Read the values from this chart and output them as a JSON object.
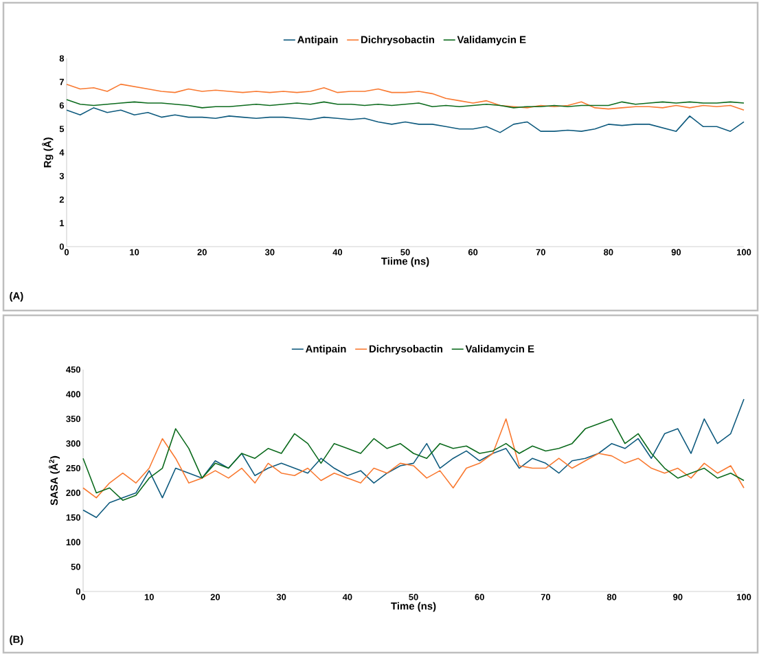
{
  "chart_data": [
    {
      "type": "line",
      "xlabel": "Tiime (ns)",
      "ylabel": "Rg (Å)",
      "legend": "top",
      "xlim": [
        0,
        100
      ],
      "ylim": [
        0,
        8
      ],
      "xticks": [
        0,
        10,
        20,
        30,
        40,
        50,
        60,
        70,
        80,
        90,
        100
      ],
      "yticks": [
        0,
        1,
        2,
        3,
        4,
        5,
        6,
        7,
        8
      ],
      "annotations": [
        "(A)"
      ],
      "x": [
        0,
        2,
        4,
        6,
        8,
        10,
        12,
        14,
        16,
        18,
        20,
        22,
        24,
        26,
        28,
        30,
        32,
        34,
        36,
        38,
        40,
        42,
        44,
        46,
        48,
        50,
        52,
        54,
        56,
        58,
        60,
        62,
        64,
        66,
        68,
        70,
        72,
        74,
        76,
        78,
        80,
        82,
        84,
        86,
        88,
        90,
        92,
        94,
        96,
        98,
        100
      ],
      "series": [
        {
          "name": "Antipain",
          "color": "#0e5a7e",
          "values": [
            5.8,
            5.6,
            5.9,
            5.7,
            5.8,
            5.6,
            5.7,
            5.5,
            5.6,
            5.5,
            5.5,
            5.45,
            5.55,
            5.5,
            5.45,
            5.5,
            5.5,
            5.45,
            5.4,
            5.5,
            5.45,
            5.4,
            5.45,
            5.3,
            5.2,
            5.3,
            5.2,
            5.2,
            5.1,
            5.0,
            5.0,
            5.1,
            4.85,
            5.2,
            5.3,
            4.9,
            4.9,
            4.95,
            4.9,
            5.0,
            5.2,
            5.15,
            5.2,
            5.2,
            5.05,
            4.9,
            5.55,
            5.1,
            5.1,
            4.9,
            5.3
          ]
        },
        {
          "name": "Dichrysobactin",
          "color": "#f97930",
          "values": [
            6.9,
            6.7,
            6.75,
            6.6,
            6.9,
            6.8,
            6.7,
            6.6,
            6.55,
            6.7,
            6.6,
            6.65,
            6.6,
            6.55,
            6.6,
            6.55,
            6.6,
            6.55,
            6.6,
            6.75,
            6.55,
            6.6,
            6.6,
            6.7,
            6.55,
            6.55,
            6.6,
            6.5,
            6.3,
            6.2,
            6.1,
            6.2,
            6.0,
            5.95,
            5.9,
            6.0,
            5.95,
            6.0,
            6.15,
            5.9,
            5.85,
            5.9,
            5.95,
            5.95,
            5.9,
            6.0,
            5.9,
            6.0,
            5.95,
            6.0,
            5.8
          ]
        },
        {
          "name": "Validamycin E",
          "color": "#0b6a1c",
          "values": [
            6.25,
            6.05,
            6.0,
            6.05,
            6.1,
            6.15,
            6.1,
            6.1,
            6.05,
            6.0,
            5.9,
            5.95,
            5.95,
            6.0,
            6.05,
            6.0,
            6.05,
            6.1,
            6.05,
            6.15,
            6.05,
            6.05,
            6.0,
            6.05,
            6.0,
            6.05,
            6.1,
            5.95,
            6.0,
            5.95,
            6.0,
            6.05,
            6.0,
            5.9,
            5.95,
            5.95,
            6.0,
            5.95,
            6.0,
            6.0,
            6.0,
            6.15,
            6.05,
            6.1,
            6.15,
            6.1,
            6.15,
            6.1,
            6.1,
            6.15,
            6.1
          ]
        }
      ]
    },
    {
      "type": "line",
      "xlabel": "Time (ns)",
      "ylabel": "SASA (Å$^{2}$)",
      "legend": "top",
      "xlim": [
        0,
        100
      ],
      "ylim": [
        0,
        450
      ],
      "xticks": [
        0,
        10,
        20,
        30,
        40,
        50,
        60,
        70,
        80,
        90,
        100
      ],
      "yticks": [
        0,
        50,
        100,
        150,
        200,
        250,
        300,
        350,
        400,
        450
      ],
      "annotations": [
        "(B)"
      ],
      "x": [
        0,
        2,
        4,
        6,
        8,
        10,
        12,
        14,
        16,
        18,
        20,
        22,
        24,
        26,
        28,
        30,
        32,
        34,
        36,
        38,
        40,
        42,
        44,
        46,
        48,
        50,
        52,
        54,
        56,
        58,
        60,
        62,
        64,
        66,
        68,
        70,
        72,
        74,
        76,
        78,
        80,
        82,
        84,
        86,
        88,
        90,
        92,
        94,
        96,
        98,
        100
      ],
      "series": [
        {
          "name": "Antipain",
          "color": "#0e5a7e",
          "values": [
            165,
            150,
            180,
            190,
            200,
            245,
            190,
            250,
            240,
            230,
            265,
            250,
            280,
            235,
            250,
            260,
            250,
            240,
            270,
            250,
            235,
            245,
            220,
            240,
            255,
            260,
            300,
            250,
            270,
            285,
            265,
            280,
            290,
            250,
            270,
            260,
            240,
            265,
            270,
            280,
            300,
            290,
            310,
            270,
            320,
            330,
            280,
            350,
            300,
            320,
            390
          ]
        },
        {
          "name": "Dichrysobactin",
          "color": "#f97930",
          "values": [
            210,
            190,
            220,
            240,
            220,
            250,
            310,
            270,
            220,
            230,
            245,
            230,
            250,
            220,
            260,
            240,
            235,
            250,
            225,
            240,
            230,
            220,
            250,
            240,
            260,
            255,
            230,
            245,
            210,
            250,
            260,
            280,
            350,
            255,
            250,
            250,
            270,
            250,
            265,
            280,
            275,
            260,
            270,
            250,
            240,
            250,
            230,
            260,
            240,
            255,
            210
          ]
        },
        {
          "name": "Validamycin E",
          "color": "#0b6a1c",
          "values": [
            270,
            200,
            210,
            185,
            195,
            230,
            250,
            330,
            290,
            230,
            260,
            250,
            280,
            270,
            290,
            280,
            320,
            300,
            260,
            300,
            290,
            280,
            310,
            290,
            300,
            280,
            270,
            300,
            290,
            295,
            280,
            285,
            300,
            280,
            295,
            285,
            290,
            300,
            330,
            340,
            350,
            300,
            320,
            280,
            250,
            230,
            240,
            250,
            230,
            240,
            225
          ]
        }
      ]
    }
  ]
}
